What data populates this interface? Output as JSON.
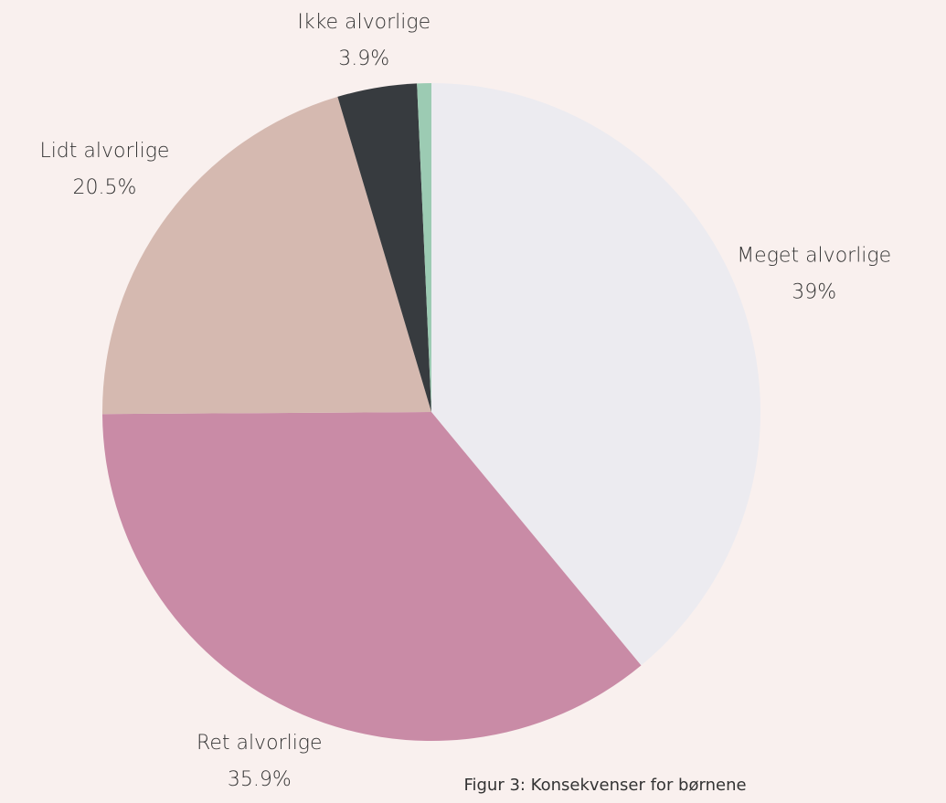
{
  "chart_data": {
    "type": "pie",
    "categories": [
      "Meget alvorlige",
      "Ret alvorlige",
      "Lidt alvorlige",
      "Ikke alvorlige",
      null
    ],
    "values": [
      39,
      35.9,
      20.5,
      3.9,
      0.7
    ],
    "value_labels": [
      "39%",
      "35.9%",
      "20.5%",
      "3.9%",
      null
    ],
    "colors": [
      "#ecebf0",
      "#c98ba6",
      "#d5b9b0",
      "#373b3f",
      "#9ccbb3"
    ],
    "caption": "Figur 3: Konsekvenser for børnene"
  }
}
